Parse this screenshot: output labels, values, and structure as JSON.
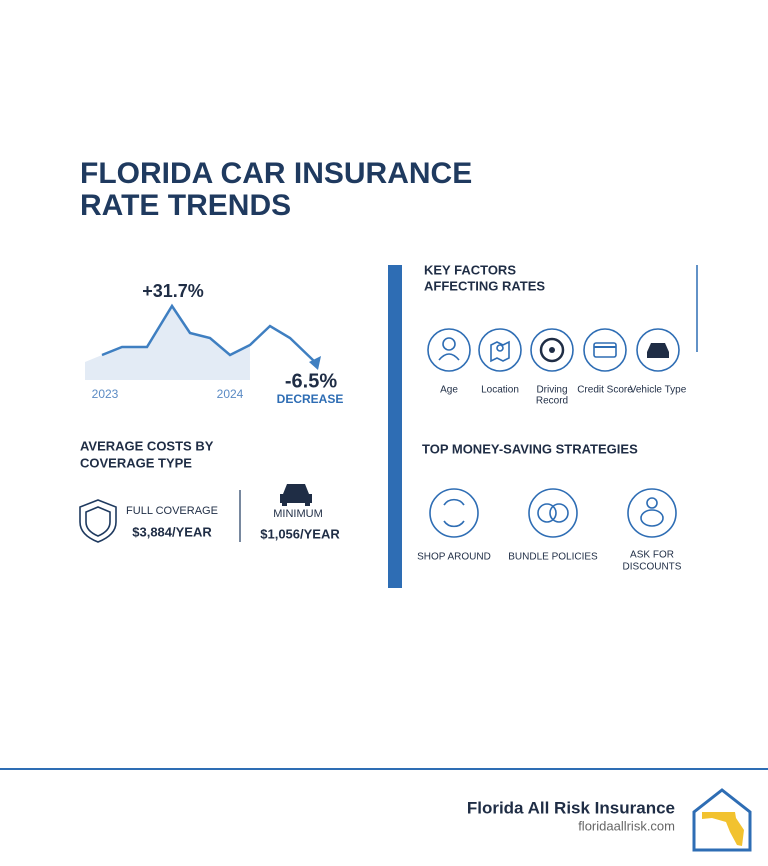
{
  "title_lines": [
    "FLORIDA CAR INSURANCE",
    "RATE TRENDS"
  ],
  "trend": {
    "increase": "+31.7%",
    "decrease": "-6.5%",
    "decrease_label": "DECREASE",
    "start_year": "2023",
    "end_year": "2024"
  },
  "costs": {
    "heading_lines": [
      "AVERAGE COSTS BY",
      "COVERAGE TYPE"
    ],
    "items": [
      {
        "label": "FULL COVERAGE",
        "value": "$3,884/YEAR"
      },
      {
        "label": "MINIMUM",
        "value": "$1,056/YEAR"
      }
    ]
  },
  "factors": {
    "heading_lines": [
      "KEY FACTORS",
      "AFFECTING RATES"
    ],
    "items": [
      [
        "Age"
      ],
      [
        "Location"
      ],
      [
        "Driving",
        "Record"
      ],
      [
        "Credit Score"
      ],
      [
        "Vehicle Type"
      ]
    ]
  },
  "strategies": {
    "heading": "TOP MONEY-SAVING STRATEGIES",
    "items": [
      [
        "SHOP AROUND"
      ],
      [
        "BUNDLE POLICIES"
      ],
      [
        "ASK FOR",
        "DISCOUNTS"
      ]
    ]
  },
  "footer": {
    "company": "Florida All Risk Insurance",
    "url": "floridaallrisk.com"
  }
}
